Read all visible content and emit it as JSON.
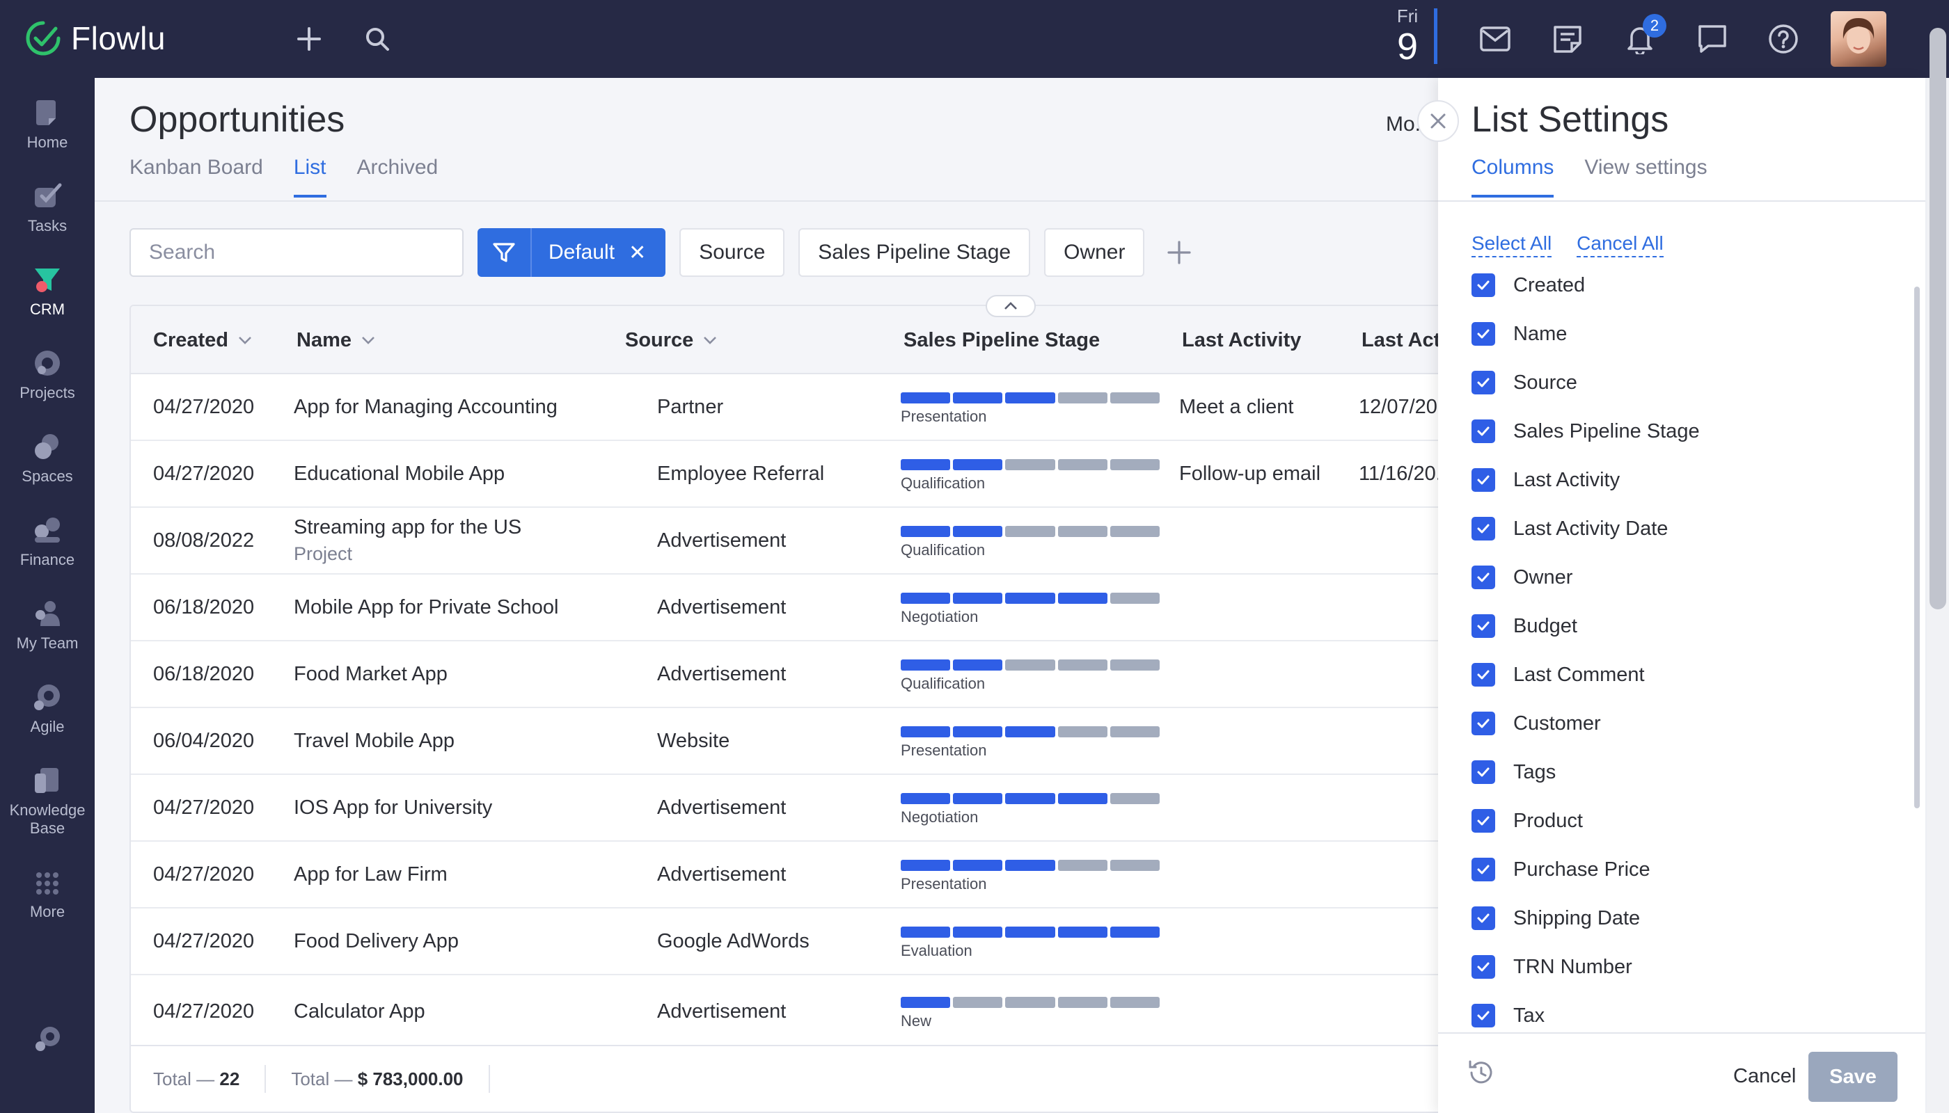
{
  "app": {
    "name": "Flowlu"
  },
  "topbar": {
    "date_dow": "Fri",
    "date_day": "9",
    "notifications_count": "2",
    "icons": [
      "plus-icon",
      "search-icon",
      "mail-icon",
      "notes-icon",
      "bell-icon",
      "chat-icon",
      "help-icon"
    ]
  },
  "sidenav": {
    "items": [
      {
        "label": "Home",
        "icon": "home-icon"
      },
      {
        "label": "Tasks",
        "icon": "tasks-icon"
      },
      {
        "label": "CRM",
        "icon": "crm-icon",
        "active": true
      },
      {
        "label": "Projects",
        "icon": "projects-icon"
      },
      {
        "label": "Spaces",
        "icon": "spaces-icon"
      },
      {
        "label": "Finance",
        "icon": "finance-icon"
      },
      {
        "label": "My Team",
        "icon": "team-icon"
      },
      {
        "label": "Agile",
        "icon": "agile-icon"
      },
      {
        "label": "Knowledge",
        "label2": "Base",
        "icon": "knowledge-icon"
      },
      {
        "label": "More",
        "icon": "more-icon"
      }
    ]
  },
  "main": {
    "title": "Opportunities",
    "more_link": "Mo...",
    "tabs": [
      "Kanban Board",
      "List",
      "Archived"
    ],
    "active_tab": "List",
    "search_placeholder": "Search",
    "filter_label": "Default",
    "chips": [
      "Source",
      "Sales Pipeline Stage",
      "Owner"
    ],
    "columns": [
      "Created",
      "Name",
      "Source",
      "Sales Pipeline Stage",
      "Last Activity",
      "Last Act..."
    ],
    "rows": [
      {
        "created": "04/27/2020",
        "name": "App for Managing Accounting",
        "source": "Partner",
        "stage": "Presentation",
        "stage_level": 3,
        "last_activity": "Meet a client",
        "last_activity_date": "12/07/20..."
      },
      {
        "created": "04/27/2020",
        "name": "Educational Mobile App",
        "source": "Employee Referral",
        "stage": "Qualification",
        "stage_level": 2,
        "last_activity": "Follow-up email",
        "last_activity_date": "11/16/20..."
      },
      {
        "created": "08/08/2022",
        "name": "Streaming app for the US",
        "sub": "Project",
        "source": "Advertisement",
        "stage": "Qualification",
        "stage_level": 2,
        "last_activity": "",
        "last_activity_date": ""
      },
      {
        "created": "06/18/2020",
        "name": "Mobile App for Private School",
        "source": "Advertisement",
        "stage": "Negotiation",
        "stage_level": 4,
        "last_activity": "",
        "last_activity_date": ""
      },
      {
        "created": "06/18/2020",
        "name": "Food Market App",
        "source": "Advertisement",
        "stage": "Qualification",
        "stage_level": 2,
        "last_activity": "",
        "last_activity_date": ""
      },
      {
        "created": "06/04/2020",
        "name": "Travel Mobile App",
        "source": "Website",
        "stage": "Presentation",
        "stage_level": 3,
        "last_activity": "",
        "last_activity_date": ""
      },
      {
        "created": "04/27/2020",
        "name": "IOS App for University",
        "source": "Advertisement",
        "stage": "Negotiation",
        "stage_level": 4,
        "last_activity": "",
        "last_activity_date": ""
      },
      {
        "created": "04/27/2020",
        "name": "App for Law Firm",
        "source": "Advertisement",
        "stage": "Presentation",
        "stage_level": 3,
        "last_activity": "",
        "last_activity_date": ""
      },
      {
        "created": "04/27/2020",
        "name": "Food Delivery App",
        "source": "Google AdWords",
        "stage": "Evaluation",
        "stage_level": 5,
        "last_activity": "",
        "last_activity_date": ""
      },
      {
        "created": "04/27/2020",
        "name": "Calculator App",
        "source": "Advertisement",
        "stage": "New",
        "stage_level": 1,
        "last_activity": "",
        "last_activity_date": ""
      }
    ],
    "footer": {
      "count_label": "Total —",
      "count": "22",
      "sum_label": "Total —",
      "sum": "$ 783,000.00"
    }
  },
  "panel": {
    "title": "List Settings",
    "tabs": [
      "Columns",
      "View settings"
    ],
    "active_tab": "Columns",
    "select_all": "Select All",
    "cancel_all": "Cancel All",
    "columns": [
      {
        "label": "Created",
        "checked": true
      },
      {
        "label": "Name",
        "checked": true
      },
      {
        "label": "Source",
        "checked": true
      },
      {
        "label": "Sales Pipeline Stage",
        "checked": true
      },
      {
        "label": "Last Activity",
        "checked": true
      },
      {
        "label": "Last Activity Date",
        "checked": true
      },
      {
        "label": "Owner",
        "checked": true
      },
      {
        "label": "Budget",
        "checked": true
      },
      {
        "label": "Last Comment",
        "checked": true
      },
      {
        "label": "Customer",
        "checked": true
      },
      {
        "label": "Tags",
        "checked": true
      },
      {
        "label": "Product",
        "checked": true
      },
      {
        "label": "Purchase Price",
        "checked": true
      },
      {
        "label": "Shipping Date",
        "checked": true
      },
      {
        "label": "TRN Number",
        "checked": true
      },
      {
        "label": "Tax",
        "checked": true
      }
    ],
    "cancel_label": "Cancel",
    "save_label": "Save"
  },
  "colors": {
    "topbar": "#262945",
    "accent": "#2f6de0",
    "stage_on": "#2f5ee6",
    "stage_off": "#a3acbd"
  }
}
